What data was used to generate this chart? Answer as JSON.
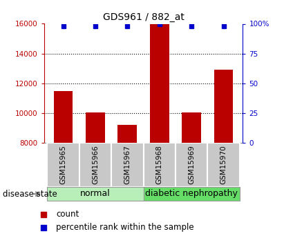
{
  "title": "GDS961 / 882_at",
  "samples": [
    "GSM15965",
    "GSM15966",
    "GSM15967",
    "GSM15968",
    "GSM15969",
    "GSM15970"
  ],
  "counts": [
    11500,
    10050,
    9200,
    16000,
    10050,
    12900
  ],
  "percentile_ranks": [
    98,
    98,
    98,
    100,
    98,
    98
  ],
  "ylim_left": [
    8000,
    16000
  ],
  "ylim_right": [
    0,
    100
  ],
  "yticks_left": [
    8000,
    10000,
    12000,
    14000,
    16000
  ],
  "yticks_right": [
    0,
    25,
    50,
    75,
    100
  ],
  "ytick_labels_right": [
    "0",
    "25",
    "50",
    "75",
    "100%"
  ],
  "bar_color": "#bb0000",
  "marker_color": "#0000cc",
  "grid_values": [
    10000,
    12000,
    14000
  ],
  "normal_color": "#b8eeb8",
  "diabetic_color": "#66dd66",
  "label_box_color": "#c8c8c8",
  "normal_label": "normal",
  "diabetic_label": "diabetic nephropathy",
  "disease_state_label": "disease state",
  "legend_count": "count",
  "legend_percentile": "percentile rank within the sample",
  "baseline": 8000,
  "bar_width": 0.6
}
